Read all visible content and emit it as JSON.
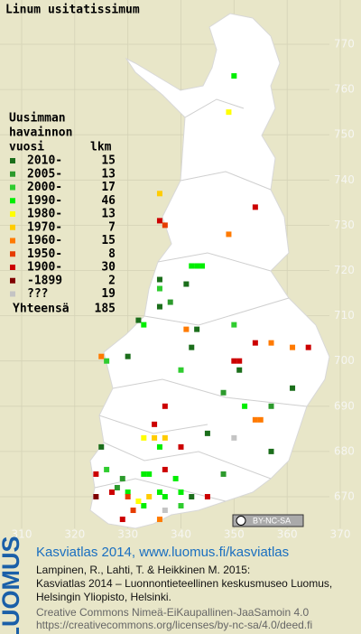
{
  "title": "Linum usitatissimum",
  "legend": {
    "heading": [
      "Uusimman",
      "havainnon",
      "vuosi"
    ],
    "count_heading": "lkm",
    "items": [
      {
        "label": "2010-",
        "count": 15,
        "color": "#1b6e1b"
      },
      {
        "label": "2005-",
        "count": 13,
        "color": "#2c9a2c"
      },
      {
        "label": "2000-",
        "count": 17,
        "color": "#2fcc2f"
      },
      {
        "label": "1990-",
        "count": 46,
        "color": "#00ee00"
      },
      {
        "label": "1980-",
        "count": 13,
        "color": "#ffff00"
      },
      {
        "label": "1970-",
        "count": 7,
        "color": "#ffcc00"
      },
      {
        "label": "1960-",
        "count": 15,
        "color": "#ff7a00"
      },
      {
        "label": "1950-",
        "count": 8,
        "color": "#e63c00"
      },
      {
        "label": "1900-",
        "count": 30,
        "color": "#cc0000"
      },
      {
        "label": "-1899",
        "count": 2,
        "color": "#800000"
      },
      {
        "label": "???",
        "count": 19,
        "color": "#c4c4c4"
      }
    ],
    "total_label": "Yhteensä",
    "total": 185
  },
  "map": {
    "xlim": [
      310,
      370
    ],
    "ylim": [
      670,
      770
    ],
    "xticks": [
      310,
      320,
      330,
      340,
      350,
      360,
      370
    ],
    "yticks": [
      670,
      680,
      690,
      700,
      710,
      720,
      730,
      740,
      750,
      760,
      770
    ],
    "squares": [
      [
        350,
        763,
        3
      ],
      [
        349,
        755,
        4
      ],
      [
        336,
        737,
        5
      ],
      [
        354,
        734,
        8
      ],
      [
        336,
        731,
        8
      ],
      [
        337,
        730,
        7
      ],
      [
        349,
        728,
        6
      ],
      [
        342,
        721,
        3
      ],
      [
        343,
        721,
        3
      ],
      [
        344,
        721,
        3
      ],
      [
        336,
        718,
        0
      ],
      [
        341,
        717,
        0
      ],
      [
        336,
        716,
        2
      ],
      [
        338,
        713,
        1
      ],
      [
        336,
        712,
        0
      ],
      [
        332,
        709,
        0
      ],
      [
        333,
        708,
        3
      ],
      [
        341,
        707,
        6
      ],
      [
        343,
        707,
        0
      ],
      [
        350,
        708,
        2
      ],
      [
        342,
        703,
        0
      ],
      [
        354,
        704,
        8
      ],
      [
        357,
        704,
        6
      ],
      [
        361,
        703,
        6
      ],
      [
        364,
        703,
        8
      ],
      [
        325,
        701,
        6
      ],
      [
        326,
        700,
        2
      ],
      [
        330,
        701,
        0
      ],
      [
        340,
        698,
        2
      ],
      [
        350,
        700,
        8
      ],
      [
        351,
        700,
        8
      ],
      [
        351,
        698,
        0
      ],
      [
        361,
        694,
        0
      ],
      [
        348,
        693,
        1
      ],
      [
        337,
        690,
        8
      ],
      [
        352,
        690,
        3
      ],
      [
        357,
        690,
        1
      ],
      [
        354,
        687,
        6
      ],
      [
        355,
        687,
        6
      ],
      [
        335,
        686,
        8
      ],
      [
        345,
        684,
        0
      ],
      [
        333,
        683,
        4
      ],
      [
        335,
        683,
        5
      ],
      [
        337,
        683,
        5
      ],
      [
        336,
        681,
        3
      ],
      [
        340,
        681,
        8
      ],
      [
        325,
        681,
        0
      ],
      [
        350,
        683,
        10
      ],
      [
        357,
        680,
        0
      ],
      [
        326,
        676,
        2
      ],
      [
        324,
        675,
        8
      ],
      [
        329,
        674,
        1
      ],
      [
        333,
        675,
        3
      ],
      [
        334,
        675,
        3
      ],
      [
        337,
        676,
        8
      ],
      [
        339,
        674,
        3
      ],
      [
        348,
        675,
        1
      ],
      [
        327,
        671,
        8
      ],
      [
        328,
        672,
        1
      ],
      [
        330,
        671,
        3
      ],
      [
        336,
        671,
        3
      ],
      [
        337,
        670,
        3
      ],
      [
        340,
        671,
        3
      ],
      [
        342,
        670,
        0
      ],
      [
        345,
        670,
        8
      ],
      [
        331,
        667,
        7
      ],
      [
        333,
        668,
        3
      ],
      [
        336,
        665,
        6
      ],
      [
        329,
        665,
        8
      ],
      [
        324,
        670,
        9
      ],
      [
        332,
        669,
        4
      ],
      [
        334,
        670,
        5
      ],
      [
        337,
        667,
        10
      ],
      [
        330,
        670,
        7
      ],
      [
        340,
        668,
        2
      ]
    ]
  },
  "license_badge": "BY-NC-SA",
  "footer": {
    "logo": "LUOMUS",
    "link": "Kasviatlas 2014, www.luomus.fi/kasviatlas",
    "citation": [
      "Lampinen, R., Lahti, T. & Heikkinen M. 2015:",
      "Kasviatlas 2014 – Luonnontieteellinen keskusmuseo Luomus,",
      "Helsingin Yliopisto, Helsinki."
    ],
    "license": [
      "Creative Commons Nimeä-EiKaupallinen-JaaSamoin 4.0",
      "https://creativecommons.org/licenses/by-nc-sa/4.0/deed.fi"
    ]
  }
}
